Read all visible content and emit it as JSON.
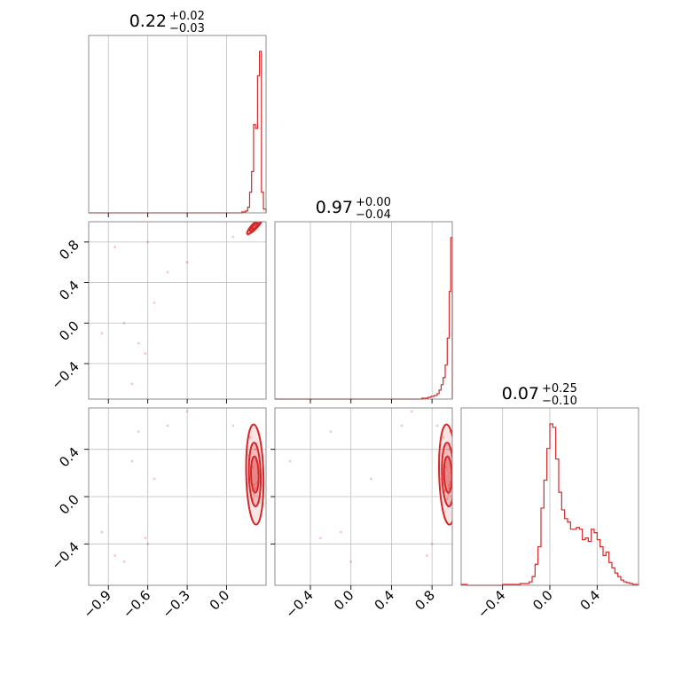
{
  "chart_data": {
    "type": "corner",
    "color": "#d62728",
    "grid": true,
    "parameters": [
      {
        "range": [
          -1.05,
          0.3
        ],
        "ticks": [
          -0.9,
          -0.6,
          -0.3,
          0.0
        ],
        "tick_labels": [
          "−0.9",
          "−0.6",
          "−0.3",
          "0.0"
        ],
        "title": {
          "median": "0.22",
          "plus": "+0.02",
          "minus": "−0.03"
        },
        "histogram": {
          "edges": [
            0.115,
            0.13,
            0.145,
            0.16,
            0.175,
            0.19,
            0.205,
            0.22,
            0.235,
            0.25,
            0.265,
            0.28,
            0.3
          ],
          "counts": [
            0.5,
            0.5,
            1,
            3,
            11,
            22,
            47,
            45,
            73,
            86,
            11,
            2
          ]
        }
      },
      {
        "range": [
          -0.75,
          1.0
        ],
        "ticks": [
          -0.4,
          0.0,
          0.4,
          0.8
        ],
        "tick_labels": [
          "−0.4",
          "0.0",
          "0.4",
          "0.8"
        ],
        "title": {
          "median": "0.97",
          "plus": "+0.00",
          "minus": "−0.04"
        },
        "histogram": {
          "edges": [
            0.7,
            0.73,
            0.76,
            0.79,
            0.82,
            0.85,
            0.87,
            0.89,
            0.91,
            0.93,
            0.95,
            0.97,
            0.985,
            1.0
          ],
          "counts": [
            0.5,
            0.5,
            1,
            1.5,
            2,
            3,
            5,
            8,
            12,
            19,
            34,
            60,
            90
          ]
        }
      },
      {
        "range": [
          -0.75,
          0.75
        ],
        "ticks": [
          -0.4,
          0.0,
          0.4
        ],
        "tick_labels": [
          "−0.4",
          "0.0",
          "0.4"
        ],
        "title": {
          "median": "0.07",
          "plus": "+0.25",
          "minus": "−0.10"
        },
        "histogram": {
          "edges": [
            -0.75,
            -0.7,
            -0.65,
            -0.6,
            -0.55,
            -0.5,
            -0.45,
            -0.4,
            -0.35,
            -0.3,
            -0.25,
            -0.2,
            -0.175,
            -0.15,
            -0.125,
            -0.1,
            -0.075,
            -0.05,
            -0.025,
            0.0,
            0.025,
            0.05,
            0.075,
            0.1,
            0.125,
            0.15,
            0.175,
            0.2,
            0.225,
            0.25,
            0.275,
            0.3,
            0.325,
            0.35,
            0.375,
            0.4,
            0.425,
            0.45,
            0.475,
            0.5,
            0.525,
            0.55,
            0.575,
            0.6,
            0.625,
            0.65,
            0.675,
            0.7,
            0.725,
            0.75
          ],
          "counts": [
            0.5,
            0,
            0,
            0,
            0,
            0,
            0,
            0.5,
            0.5,
            0.5,
            1,
            1,
            2,
            5,
            12,
            22,
            44,
            60,
            78,
            92,
            90,
            72,
            53,
            43,
            38,
            36,
            32,
            32,
            33,
            32,
            26,
            27,
            25,
            32,
            30,
            26,
            22,
            17,
            19,
            13,
            10,
            7,
            5,
            3,
            2,
            1.5,
            1,
            0.5,
            0.5
          ]
        }
      }
    ],
    "scatter_samples": [
      [
        0.22,
        0.97,
        0.07
      ],
      [
        0.21,
        0.96,
        0.02
      ],
      [
        0.23,
        0.98,
        0.12
      ],
      [
        0.24,
        0.99,
        0.2
      ],
      [
        0.2,
        0.95,
        -0.02
      ],
      [
        0.22,
        0.98,
        0.4
      ],
      [
        0.23,
        0.99,
        0.3
      ],
      [
        0.19,
        0.93,
        0.05
      ],
      [
        0.21,
        0.97,
        0.1
      ],
      [
        0.25,
        0.99,
        -0.05
      ],
      [
        0.18,
        0.91,
        0.5
      ],
      [
        0.24,
        0.98,
        0.55
      ],
      [
        0.22,
        0.96,
        -0.08
      ],
      [
        0.2,
        0.94,
        0.25
      ],
      [
        0.17,
        0.89,
        0.15
      ],
      [
        0.16,
        0.87,
        0.35
      ],
      [
        0.26,
        1.0,
        0.0
      ],
      [
        0.23,
        0.97,
        0.45
      ],
      [
        -0.45,
        0.5,
        0.6
      ],
      [
        -0.62,
        -0.3,
        -0.35
      ],
      [
        -0.72,
        -0.6,
        0.3
      ],
      [
        -0.78,
        0.0,
        -0.55
      ],
      [
        -0.55,
        0.2,
        0.15
      ],
      [
        -0.95,
        -0.1,
        -0.3
      ],
      [
        -0.85,
        0.75,
        -0.5
      ],
      [
        -0.67,
        -0.2,
        0.55
      ],
      [
        -0.3,
        0.6,
        0.72
      ],
      [
        0.05,
        0.85,
        0.6
      ],
      [
        -0.6,
        0.8,
        -0.4
      ]
    ]
  }
}
